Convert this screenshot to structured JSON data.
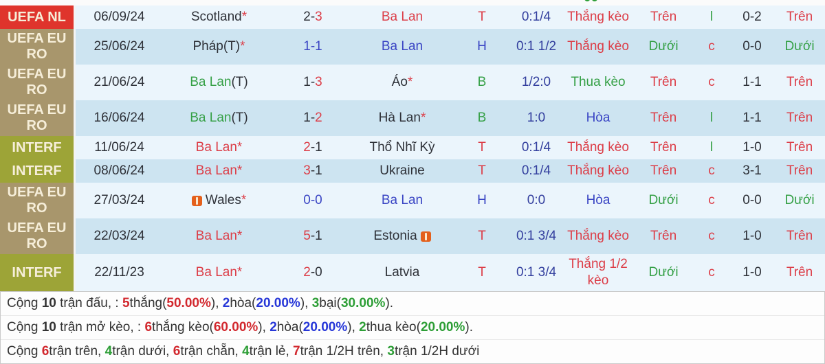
{
  "top_strip_fragment": "00",
  "palette": {
    "win_red": "#dc3d47",
    "loss_green": "#35a046",
    "draw_blue": "#3a45c4",
    "handicap_navy": "#333f9e",
    "dark_text": "#2e3138",
    "comp_nl_bg": "#df342c",
    "comp_euro_bg": "#a8966c",
    "comp_interf_bg": "#9da437",
    "row_light": "#ebf5fc",
    "row_dark": "#cde4f1",
    "comp_label_cream": "#f6eed9",
    "summary_red": "#d2282e",
    "summary_blue": "#2737d8",
    "summary_green": "#2d9e36",
    "card_icon_orange": "#e4601c"
  },
  "rows": [
    {
      "comp": "UEFA NL",
      "comp_style": "nl",
      "date": "06/09/24",
      "home": {
        "name": "Scotland",
        "suffix": "",
        "star": "*",
        "cls": "dark",
        "icon": ""
      },
      "score": {
        "h": "2",
        "sep": "-",
        "a": "3",
        "h_cls": "dark",
        "sep_cls": "dark",
        "a_cls": "red"
      },
      "away": {
        "name": "Ba Lan",
        "suffix": "",
        "star": "",
        "cls": "red",
        "icon": ""
      },
      "result": {
        "t": "T",
        "cls": "red"
      },
      "handicap": "0:1/4",
      "keo": {
        "t": "Thắng kèo",
        "cls": "red"
      },
      "ou1": {
        "t": "Trên",
        "cls": "red"
      },
      "lc": {
        "t": "l",
        "cls": "green"
      },
      "score2": "0-2",
      "ou2": {
        "t": "Trên",
        "cls": "red"
      }
    },
    {
      "comp": "UEFA EURO",
      "comp_style": "euro",
      "date": "25/06/24",
      "home": {
        "name": "Pháp",
        "suffix": "(T)",
        "star": "*",
        "cls": "dark",
        "icon": ""
      },
      "score": {
        "h": "1",
        "sep": "-",
        "a": "1",
        "h_cls": "blue",
        "sep_cls": "blue",
        "a_cls": "blue"
      },
      "away": {
        "name": "Ba Lan",
        "suffix": "",
        "star": "",
        "cls": "blue",
        "icon": ""
      },
      "result": {
        "t": "H",
        "cls": "blue"
      },
      "handicap": "0:1 1/2",
      "keo": {
        "t": "Thắng kèo",
        "cls": "red"
      },
      "ou1": {
        "t": "Dưới",
        "cls": "green"
      },
      "lc": {
        "t": "c",
        "cls": "red"
      },
      "score2": "0-0",
      "ou2": {
        "t": "Dưới",
        "cls": "green"
      }
    },
    {
      "comp": "UEFA EURO",
      "comp_style": "euro",
      "date": "21/06/24",
      "home": {
        "name": "Ba Lan",
        "suffix": "(T)",
        "star": "",
        "cls": "green",
        "icon": ""
      },
      "score": {
        "h": "1",
        "sep": "-",
        "a": "3",
        "h_cls": "dark",
        "sep_cls": "dark",
        "a_cls": "red"
      },
      "away": {
        "name": "Áo",
        "suffix": "",
        "star": "*",
        "cls": "dark",
        "icon": ""
      },
      "result": {
        "t": "B",
        "cls": "green"
      },
      "handicap": "1/2:0",
      "keo": {
        "t": "Thua kèo",
        "cls": "green"
      },
      "ou1": {
        "t": "Trên",
        "cls": "red"
      },
      "lc": {
        "t": "c",
        "cls": "red"
      },
      "score2": "1-1",
      "ou2": {
        "t": "Trên",
        "cls": "red"
      }
    },
    {
      "comp": "UEFA EURO",
      "comp_style": "euro",
      "date": "16/06/24",
      "home": {
        "name": "Ba Lan",
        "suffix": "(T)",
        "star": "",
        "cls": "green",
        "icon": ""
      },
      "score": {
        "h": "1",
        "sep": "-",
        "a": "2",
        "h_cls": "dark",
        "sep_cls": "dark",
        "a_cls": "red"
      },
      "away": {
        "name": "Hà Lan",
        "suffix": "",
        "star": "*",
        "cls": "dark",
        "icon": ""
      },
      "result": {
        "t": "B",
        "cls": "green"
      },
      "handicap": "1:0",
      "keo": {
        "t": "Hòa",
        "cls": "blue"
      },
      "ou1": {
        "t": "Trên",
        "cls": "red"
      },
      "lc": {
        "t": "l",
        "cls": "green"
      },
      "score2": "1-1",
      "ou2": {
        "t": "Trên",
        "cls": "red"
      }
    },
    {
      "comp": "INTERF",
      "comp_style": "interf",
      "date": "11/06/24",
      "home": {
        "name": "Ba Lan",
        "suffix": "",
        "star": "*",
        "cls": "red",
        "icon": ""
      },
      "score": {
        "h": "2",
        "sep": "-",
        "a": "1",
        "h_cls": "red",
        "sep_cls": "dark",
        "a_cls": "dark"
      },
      "away": {
        "name": "Thổ Nhĩ Kỳ",
        "suffix": "",
        "star": "",
        "cls": "dark",
        "icon": ""
      },
      "result": {
        "t": "T",
        "cls": "red"
      },
      "handicap": "0:1/4",
      "keo": {
        "t": "Thắng kèo",
        "cls": "red"
      },
      "ou1": {
        "t": "Trên",
        "cls": "red"
      },
      "lc": {
        "t": "l",
        "cls": "green"
      },
      "score2": "1-0",
      "ou2": {
        "t": "Trên",
        "cls": "red"
      }
    },
    {
      "comp": "INTERF",
      "comp_style": "interf",
      "date": "08/06/24",
      "home": {
        "name": "Ba Lan",
        "suffix": "",
        "star": "*",
        "cls": "red",
        "icon": ""
      },
      "score": {
        "h": "3",
        "sep": "-",
        "a": "1",
        "h_cls": "red",
        "sep_cls": "dark",
        "a_cls": "dark"
      },
      "away": {
        "name": "Ukraine",
        "suffix": "",
        "star": "",
        "cls": "dark",
        "icon": ""
      },
      "result": {
        "t": "T",
        "cls": "red"
      },
      "handicap": "0:1/4",
      "keo": {
        "t": "Thắng kèo",
        "cls": "red"
      },
      "ou1": {
        "t": "Trên",
        "cls": "red"
      },
      "lc": {
        "t": "c",
        "cls": "red"
      },
      "score2": "3-1",
      "ou2": {
        "t": "Trên",
        "cls": "red"
      }
    },
    {
      "comp": "UEFA EURO",
      "comp_style": "euro",
      "date": "27/03/24",
      "home": {
        "name": "Wales",
        "suffix": "",
        "star": "*",
        "cls": "dark",
        "icon": "card-icon"
      },
      "score": {
        "h": "0",
        "sep": "-",
        "a": "0",
        "h_cls": "blue",
        "sep_cls": "blue",
        "a_cls": "blue"
      },
      "away": {
        "name": "Ba Lan",
        "suffix": "",
        "star": "",
        "cls": "blue",
        "icon": ""
      },
      "result": {
        "t": "H",
        "cls": "blue"
      },
      "handicap": "0:0",
      "keo": {
        "t": "Hòa",
        "cls": "blue"
      },
      "ou1": {
        "t": "Dưới",
        "cls": "green"
      },
      "lc": {
        "t": "c",
        "cls": "red"
      },
      "score2": "0-0",
      "ou2": {
        "t": "Dưới",
        "cls": "green"
      }
    },
    {
      "comp": "UEFA EURO",
      "comp_style": "euro",
      "date": "22/03/24",
      "home": {
        "name": "Ba Lan",
        "suffix": "",
        "star": "*",
        "cls": "red",
        "icon": ""
      },
      "score": {
        "h": "5",
        "sep": "-",
        "a": "1",
        "h_cls": "red",
        "sep_cls": "dark",
        "a_cls": "dark"
      },
      "away": {
        "name": "Estonia",
        "suffix": "",
        "star": "",
        "cls": "dark",
        "icon": "card-icon"
      },
      "result": {
        "t": "T",
        "cls": "red"
      },
      "handicap": "0:1 3/4",
      "keo": {
        "t": "Thắng kèo",
        "cls": "red"
      },
      "ou1": {
        "t": "Trên",
        "cls": "red"
      },
      "lc": {
        "t": "c",
        "cls": "red"
      },
      "score2": "1-0",
      "ou2": {
        "t": "Trên",
        "cls": "red"
      }
    },
    {
      "comp": "INTERF",
      "comp_style": "interf",
      "date": "22/11/23",
      "home": {
        "name": "Ba Lan",
        "suffix": "",
        "star": "*",
        "cls": "red",
        "icon": ""
      },
      "score": {
        "h": "2",
        "sep": "-",
        "a": "0",
        "h_cls": "red",
        "sep_cls": "dark",
        "a_cls": "dark"
      },
      "away": {
        "name": "Latvia",
        "suffix": "",
        "star": "",
        "cls": "dark",
        "icon": ""
      },
      "result": {
        "t": "T",
        "cls": "red"
      },
      "handicap": "0:1 3/4",
      "keo": {
        "t": "Thắng 1/2 kèo",
        "cls": "red"
      },
      "ou1": {
        "t": "Dưới",
        "cls": "green"
      },
      "lc": {
        "t": "c",
        "cls": "red"
      },
      "score2": "1-0",
      "ou2": {
        "t": "Trên",
        "cls": "red"
      }
    }
  ],
  "summary": {
    "lines": [
      {
        "name": "total-record",
        "segs": [
          [
            "Cộng ",
            "p"
          ],
          [
            "10",
            "b"
          ],
          [
            " trận đấu, : ",
            "p"
          ],
          [
            "5",
            "r"
          ],
          [
            "thắng(",
            "p"
          ],
          [
            "50.00%",
            "r"
          ],
          [
            "), ",
            "p"
          ],
          [
            "2",
            "u"
          ],
          [
            "hòa(",
            "p"
          ],
          [
            "20.00%",
            "u"
          ],
          [
            "), ",
            "p"
          ],
          [
            "3",
            "g"
          ],
          [
            "bại(",
            "p"
          ],
          [
            "30.00%",
            "g"
          ],
          [
            ").",
            "p"
          ]
        ]
      },
      {
        "name": "handicap-record",
        "segs": [
          [
            "Cộng ",
            "p"
          ],
          [
            "10",
            "b"
          ],
          [
            " trận mở kèo, : ",
            "p"
          ],
          [
            "6",
            "r"
          ],
          [
            "thắng kèo(",
            "p"
          ],
          [
            "60.00%",
            "r"
          ],
          [
            "), ",
            "p"
          ],
          [
            "2",
            "u"
          ],
          [
            "hòa(",
            "p"
          ],
          [
            "20.00%",
            "u"
          ],
          [
            "), ",
            "p"
          ],
          [
            "2",
            "g"
          ],
          [
            "thua kèo(",
            "p"
          ],
          [
            "20.00%",
            "g"
          ],
          [
            ").",
            "p"
          ]
        ]
      },
      {
        "name": "over-under-record",
        "segs": [
          [
            "Cộng ",
            "p"
          ],
          [
            "6",
            "r"
          ],
          [
            "trận trên, ",
            "p"
          ],
          [
            "4",
            "g"
          ],
          [
            "trận dưới, ",
            "p"
          ],
          [
            "6",
            "r"
          ],
          [
            "trận chẵn, ",
            "p"
          ],
          [
            "4",
            "g"
          ],
          [
            "trận lẻ, ",
            "p"
          ],
          [
            "7",
            "r"
          ],
          [
            "trận 1/2H trên, ",
            "p"
          ],
          [
            "3",
            "g"
          ],
          [
            "trận 1/2H dưới",
            "p"
          ]
        ]
      }
    ]
  }
}
